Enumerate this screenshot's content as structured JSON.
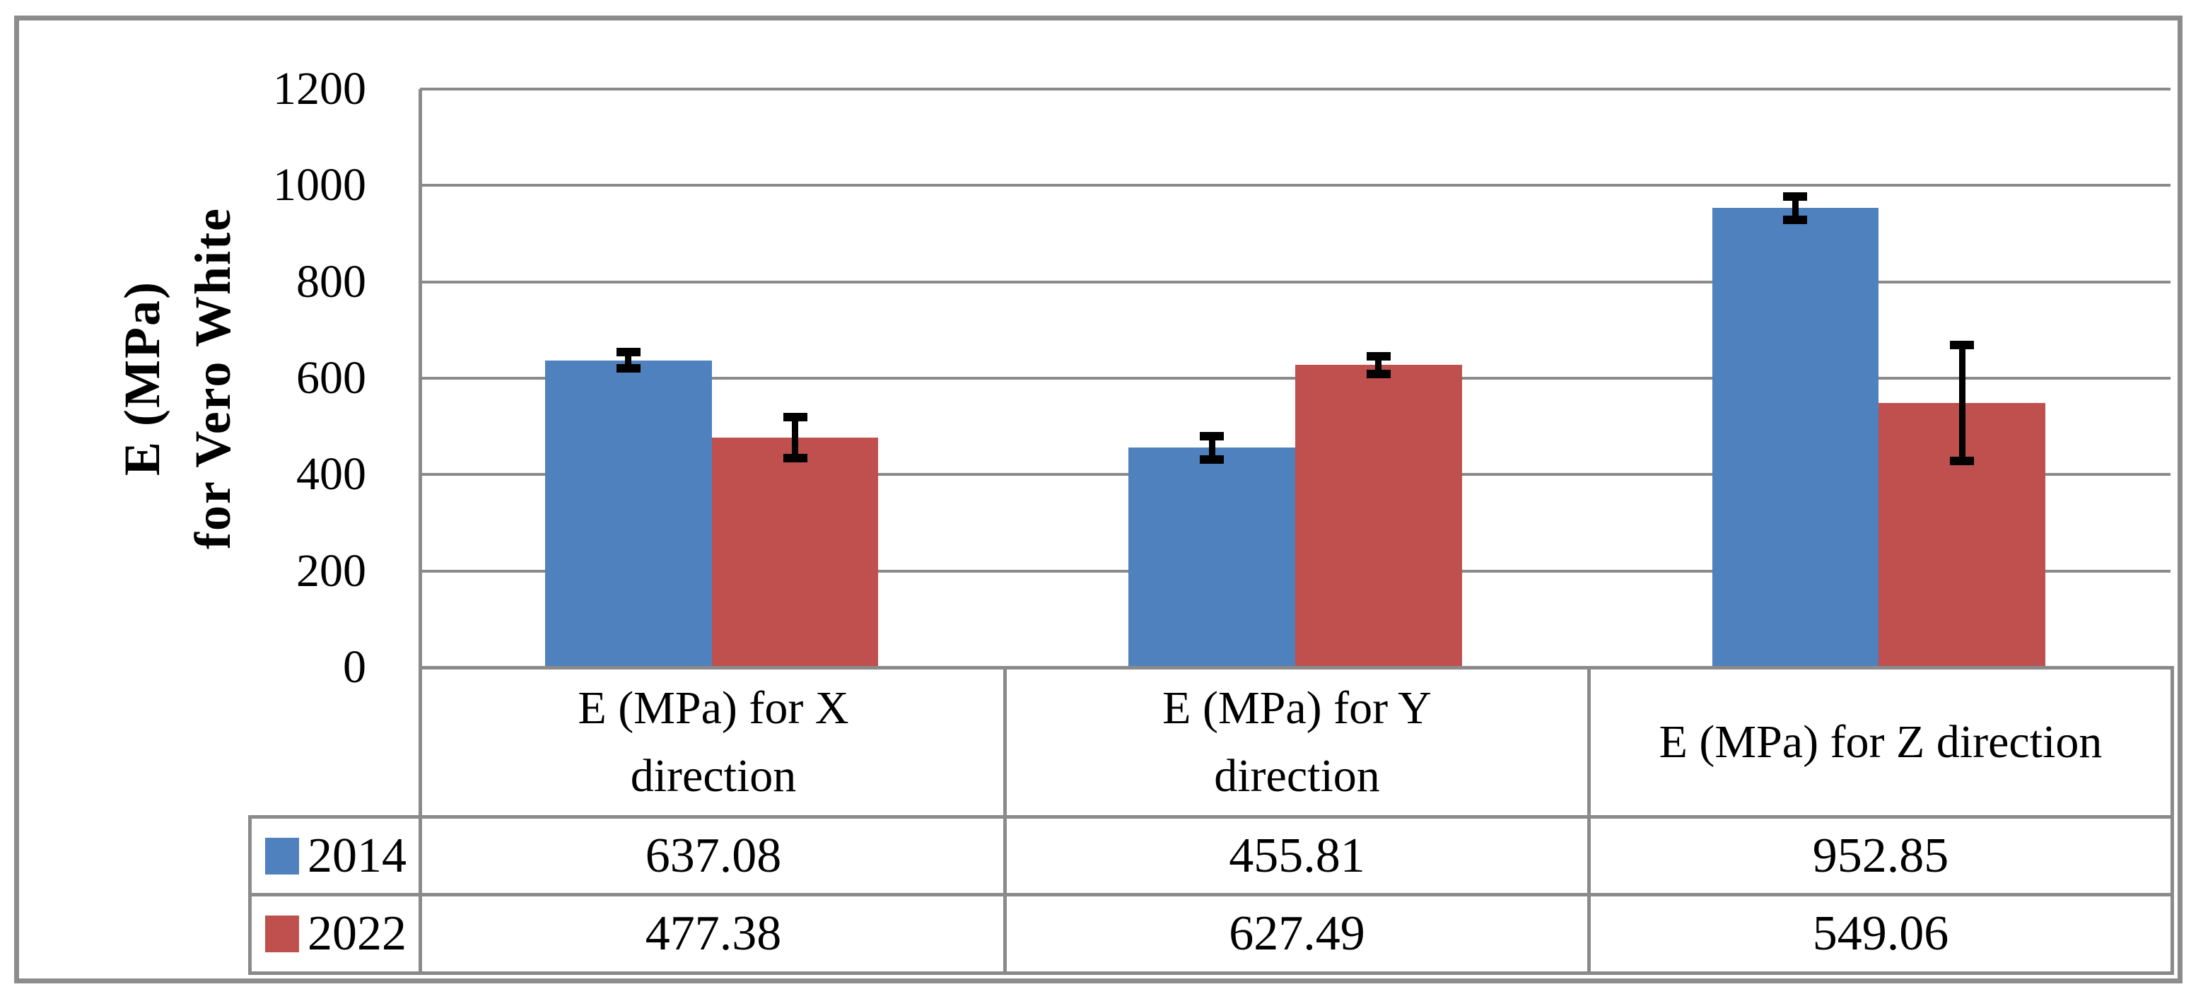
{
  "chart_data": {
    "type": "bar",
    "title": "",
    "ylabel": "E (MPa)\nfor Vero White",
    "categories": [
      "E  (MPa) for X\ndirection",
      "E  (MPa) for Y\ndirection",
      "E (MPa) for Z direction"
    ],
    "category_short_names": [
      "x-direction",
      "y-direction",
      "z-direction"
    ],
    "series": [
      {
        "name": "2014",
        "color": "#4E81BD",
        "values": [
          637.08,
          455.81,
          952.85
        ],
        "error_bars": [
          18,
          26,
          25
        ]
      },
      {
        "name": "2022",
        "color": "#C0504D",
        "values": [
          477.38,
          627.49,
          549.06
        ],
        "error_bars": [
          44,
          20,
          122
        ]
      }
    ],
    "ylim": [
      0,
      1200
    ],
    "yticks": [
      0,
      200,
      400,
      600,
      800,
      1000,
      1200
    ],
    "grid": true,
    "legend_position": "data-table-left",
    "error_bar_color": "#000000",
    "gap_width_ratio": 1.5
  },
  "data_table": {
    "column_headers": [
      "E  (MPa) for X\ndirection",
      "E  (MPa) for Y\ndirection",
      "E (MPa) for Z direction"
    ],
    "rows": [
      {
        "key_color": "#4E81BD",
        "label": "2014",
        "values": [
          "637.08",
          "455.81",
          "952.85"
        ]
      },
      {
        "key_color": "#C0504D",
        "label": "2022",
        "values": [
          "477.38",
          "627.49",
          "549.06"
        ]
      }
    ]
  },
  "colors": {
    "grid": "#8A8A8A",
    "figure_border": "#8C8C8C",
    "text": "#000000",
    "background": "#FFFFFF"
  }
}
